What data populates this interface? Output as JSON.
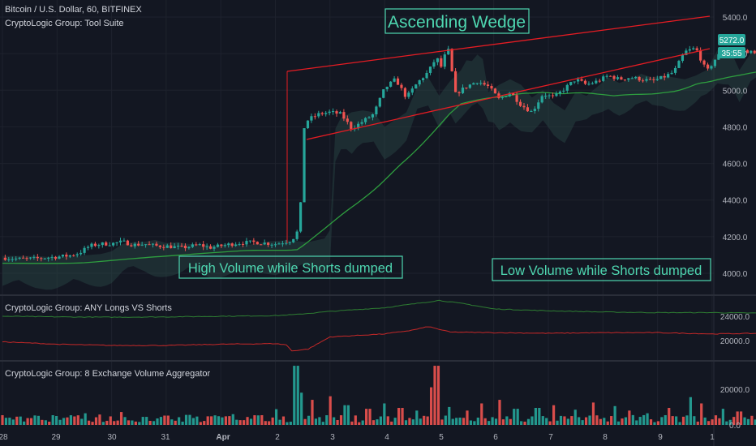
{
  "colors": {
    "bg": "#131722",
    "grid": "#1e222d",
    "separator": "#2a2e39",
    "axis_text": "#b2b5be",
    "bull": "#26a69a",
    "bear": "#ef5350",
    "wedge": "#e51c23",
    "ma": "#2e9e3f",
    "cloud": "#2b4a48",
    "longs": "#2e7d32",
    "shorts": "#c62828",
    "annotation": "#4ed6b0",
    "annotation_box": "#4ed6b0"
  },
  "header": {
    "symbol": "Bitcoin / U.S. Dollar, 60, BITFINEX",
    "indicator": "CryptoLogic Group: Tool Suite"
  },
  "panes": {
    "longs_shorts_title": "CryptoLogic Group: ANY Longs VS Shorts",
    "volume_title": "CryptoLogic Group: 8 Exchange Volume Aggregator"
  },
  "annotations": {
    "wedge": "Ascending Wedge",
    "high_volume": "High Volume while Shorts dumped",
    "low_volume": "Low Volume while Shorts dumped"
  },
  "price_tags": {
    "last_price": "5272.0",
    "countdown": "35:55"
  },
  "chart_data": [
    {
      "type": "candlestick",
      "title": "Bitcoin / U.S. Dollar, 60, BITFINEX",
      "x_ticks": [
        "28",
        "29",
        "30",
        "31",
        "Apr",
        "2",
        "3",
        "4",
        "5",
        "6",
        "7",
        "8",
        "9",
        "1"
      ],
      "y_ticks": [
        "4000.0",
        "4200.0",
        "4400.0",
        "4600.0",
        "4800.0",
        "5000.0",
        "5200.0",
        "5400.0"
      ],
      "ylim": [
        3940,
        5470
      ],
      "last_price": 5272.0,
      "price_path": [
        [
          28.0,
          4085
        ],
        [
          28.3,
          4078
        ],
        [
          28.6,
          4080
        ],
        [
          28.9,
          4088
        ],
        [
          29.2,
          4095
        ],
        [
          29.4,
          4110
        ],
        [
          29.6,
          4150
        ],
        [
          29.8,
          4160
        ],
        [
          30.0,
          4162
        ],
        [
          30.2,
          4172
        ],
        [
          30.4,
          4155
        ],
        [
          30.6,
          4160
        ],
        [
          30.8,
          4150
        ],
        [
          31.0,
          4148
        ],
        [
          31.3,
          4140
        ],
        [
          31.6,
          4155
        ],
        [
          31.8,
          4140
        ],
        [
          32.0,
          4150
        ],
        [
          32.3,
          4165
        ],
        [
          32.6,
          4170
        ],
        [
          33.0,
          4160
        ],
        [
          33.3,
          4180
        ],
        [
          33.45,
          4250
        ],
        [
          33.5,
          4780
        ],
        [
          33.6,
          4840
        ],
        [
          33.8,
          4870
        ],
        [
          34.0,
          4880
        ],
        [
          34.2,
          4870
        ],
        [
          34.4,
          4790
        ],
        [
          34.6,
          4830
        ],
        [
          34.8,
          4870
        ],
        [
          35.0,
          5010
        ],
        [
          35.2,
          5060
        ],
        [
          35.4,
          4960
        ],
        [
          35.6,
          5040
        ],
        [
          35.8,
          5100
        ],
        [
          35.95,
          5180
        ],
        [
          36.05,
          5120
        ],
        [
          36.15,
          5250
        ],
        [
          36.3,
          4980
        ],
        [
          36.5,
          5020
        ],
        [
          36.7,
          5050
        ],
        [
          36.9,
          5020
        ],
        [
          37.1,
          4950
        ],
        [
          37.3,
          4990
        ],
        [
          37.5,
          4920
        ],
        [
          37.7,
          4880
        ],
        [
          37.9,
          4980
        ],
        [
          38.1,
          4960
        ],
        [
          38.3,
          5010
        ],
        [
          38.5,
          5060
        ],
        [
          38.7,
          5030
        ],
        [
          38.9,
          5050
        ],
        [
          39.1,
          5080
        ],
        [
          39.3,
          5060
        ],
        [
          39.5,
          5070
        ],
        [
          39.7,
          5060
        ],
        [
          39.9,
          5050
        ],
        [
          40.1,
          5070
        ],
        [
          40.3,
          5100
        ],
        [
          40.5,
          5210
        ],
        [
          40.7,
          5230
        ],
        [
          40.9,
          5100
        ],
        [
          41.1,
          5190
        ],
        [
          41.3,
          5200
        ],
        [
          41.5,
          5220
        ],
        [
          41.7,
          5210
        ],
        [
          41.9,
          5180
        ],
        [
          42.1,
          5200
        ],
        [
          42.3,
          5220
        ],
        [
          42.5,
          5300
        ],
        [
          42.7,
          5340
        ],
        [
          42.9,
          5330
        ],
        [
          43.1,
          5310
        ],
        [
          43.3,
          5260
        ],
        [
          43.5,
          5250
        ],
        [
          43.7,
          5240
        ],
        [
          43.85,
          5272
        ]
      ]
    },
    {
      "type": "line",
      "title": "CryptoLogic Group: ANY Longs VS Shorts",
      "y_ticks": [
        "20000.0",
        "24000.0"
      ],
      "ylim": [
        17400,
        27200
      ],
      "series": [
        {
          "values_at": [
            [
              28.0,
              24000
            ],
            [
              29.0,
              23900
            ],
            [
              30.0,
              23850
            ],
            [
              31.0,
              23900
            ],
            [
              32.0,
              24000
            ],
            [
              33.0,
              24100
            ],
            [
              33.4,
              24300
            ],
            [
              34.0,
              24800
            ],
            [
              35.0,
              25400
            ],
            [
              35.5,
              26000
            ],
            [
              36.0,
              26600
            ],
            [
              36.5,
              26000
            ],
            [
              37.0,
              25200
            ],
            [
              38.0,
              24900
            ],
            [
              39.0,
              24700
            ],
            [
              40.0,
              24600
            ],
            [
              41.0,
              24600
            ],
            [
              42.0,
              24500
            ],
            [
              42.4,
              24900
            ],
            [
              42.6,
              25600
            ],
            [
              43.0,
              25800
            ],
            [
              43.5,
              25750
            ],
            [
              43.85,
              25800
            ]
          ]
        },
        {
          "values_at": [
            [
              28.0,
              19800
            ],
            [
              29.0,
              19400
            ],
            [
              30.0,
              19200
            ],
            [
              31.0,
              19200
            ],
            [
              32.0,
              19400
            ],
            [
              33.0,
              19500
            ],
            [
              33.2,
              19300
            ],
            [
              33.3,
              18300
            ],
            [
              33.6,
              18600
            ],
            [
              34.0,
              20600
            ],
            [
              35.0,
              21100
            ],
            [
              35.5,
              21700
            ],
            [
              35.8,
              22300
            ],
            [
              36.2,
              21400
            ],
            [
              37.0,
              21300
            ],
            [
              38.0,
              21200
            ],
            [
              39.0,
              21300
            ],
            [
              40.0,
              21300
            ],
            [
              41.0,
              21100
            ],
            [
              42.0,
              21200
            ],
            [
              42.5,
              22500
            ],
            [
              42.7,
              22600
            ],
            [
              42.75,
              18200
            ],
            [
              43.2,
              18400
            ],
            [
              43.85,
              18500
            ]
          ]
        }
      ]
    },
    {
      "type": "bar",
      "title": "CryptoLogic Group: 8 Exchange Volume Aggregator",
      "y_ticks": [
        "0.0",
        "20000.0"
      ],
      "ylim": [
        0,
        35000
      ],
      "spikes": [
        [
          28.2,
          3000,
          "up"
        ],
        [
          28.5,
          3800,
          "down"
        ],
        [
          28.8,
          2600,
          "up"
        ],
        [
          29.2,
          4200,
          "down"
        ],
        [
          29.5,
          6500,
          "up"
        ],
        [
          29.8,
          5800,
          "down"
        ],
        [
          30.2,
          7200,
          "down"
        ],
        [
          30.6,
          4500,
          "up"
        ],
        [
          31.0,
          5200,
          "down"
        ],
        [
          31.4,
          5600,
          "up"
        ],
        [
          31.8,
          4800,
          "down"
        ],
        [
          32.2,
          6000,
          "up"
        ],
        [
          32.6,
          5400,
          "down"
        ],
        [
          33.0,
          8800,
          "up"
        ],
        [
          33.38,
          33000,
          "up"
        ],
        [
          33.5,
          18000,
          "up"
        ],
        [
          33.7,
          14000,
          "down"
        ],
        [
          34.0,
          16000,
          "down"
        ],
        [
          34.3,
          11000,
          "up"
        ],
        [
          34.7,
          9000,
          "down"
        ],
        [
          35.0,
          12000,
          "up"
        ],
        [
          35.3,
          9500,
          "down"
        ],
        [
          35.6,
          8000,
          "up"
        ],
        [
          35.85,
          21000,
          "down"
        ],
        [
          35.95,
          33000,
          "down"
        ],
        [
          36.2,
          10000,
          "up"
        ],
        [
          36.5,
          8000,
          "down"
        ],
        [
          36.8,
          12000,
          "down"
        ],
        [
          37.1,
          14000,
          "down"
        ],
        [
          37.4,
          9000,
          "up"
        ],
        [
          37.8,
          9500,
          "up"
        ],
        [
          38.1,
          11000,
          "down"
        ],
        [
          38.5,
          8500,
          "up"
        ],
        [
          38.8,
          12500,
          "down"
        ],
        [
          39.2,
          10500,
          "up"
        ],
        [
          39.5,
          8000,
          "down"
        ],
        [
          39.8,
          6500,
          "up"
        ],
        [
          40.2,
          9500,
          "down"
        ],
        [
          40.6,
          15500,
          "up"
        ],
        [
          40.8,
          12000,
          "down"
        ],
        [
          41.2,
          9000,
          "up"
        ],
        [
          41.5,
          7500,
          "down"
        ],
        [
          41.9,
          10000,
          "up"
        ],
        [
          42.2,
          8500,
          "down"
        ],
        [
          42.6,
          13000,
          "up"
        ],
        [
          42.9,
          11500,
          "down"
        ],
        [
          43.2,
          10500,
          "up"
        ],
        [
          43.5,
          8000,
          "down"
        ],
        [
          43.8,
          5000,
          "up"
        ]
      ]
    }
  ]
}
